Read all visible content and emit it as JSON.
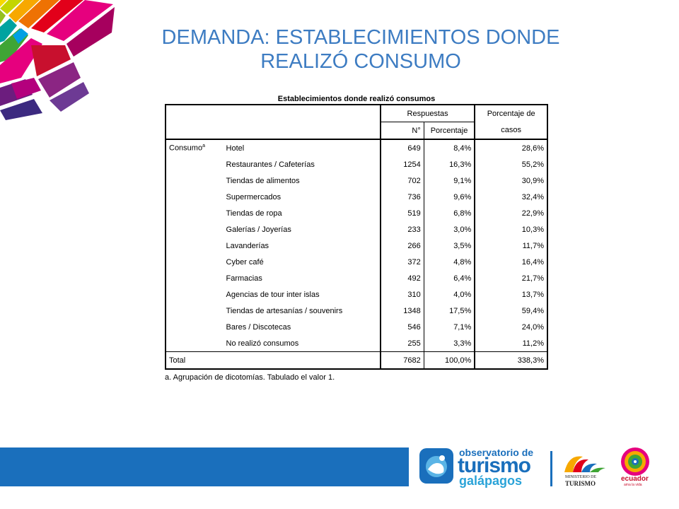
{
  "title": {
    "line1": "DEMANDA: ESTABLECIMIENTOS DONDE",
    "line2": "REALIZÓ CONSUMO"
  },
  "table": {
    "caption": "Establecimientos donde realizó consumos",
    "headers": {
      "respuestas": "Respuestas",
      "n": "N°",
      "porcentaje": "Porcentaje",
      "porcentaje_casos_line1": "Porcentaje de",
      "porcentaje_casos_line2": "casos"
    },
    "group_label": "Consumo",
    "group_sup": "a",
    "rows": [
      {
        "label": "Hotel",
        "n": "649",
        "pct": "8,4%",
        "cases": "28,6%"
      },
      {
        "label": "Restaurantes / Cafeterías",
        "n": "1254",
        "pct": "16,3%",
        "cases": "55,2%"
      },
      {
        "label": "Tiendas de alimentos",
        "n": "702",
        "pct": "9,1%",
        "cases": "30,9%"
      },
      {
        "label": "Supermercados",
        "n": "736",
        "pct": "9,6%",
        "cases": "32,4%"
      },
      {
        "label": "Tiendas de ropa",
        "n": "519",
        "pct": "6,8%",
        "cases": "22,9%"
      },
      {
        "label": "Galerías / Joyerías",
        "n": "233",
        "pct": "3,0%",
        "cases": "10,3%"
      },
      {
        "label": "Lavanderías",
        "n": "266",
        "pct": "3,5%",
        "cases": "11,7%"
      },
      {
        "label": "Cyber café",
        "n": "372",
        "pct": "4,8%",
        "cases": "16,4%"
      },
      {
        "label": "Farmacias",
        "n": "492",
        "pct": "6,4%",
        "cases": "21,7%"
      },
      {
        "label": "Agencias de tour inter islas",
        "n": "310",
        "pct": "4,0%",
        "cases": "13,7%"
      },
      {
        "label": "Tiendas de artesanías / souvenirs",
        "n": "1348",
        "pct": "17,5%",
        "cases": "59,4%"
      },
      {
        "label": "Bares / Discotecas",
        "n": "546",
        "pct": "7,1%",
        "cases": "24,0%"
      },
      {
        "label": "No realizó consumos",
        "n": "255",
        "pct": "3,3%",
        "cases": "11,2%"
      }
    ],
    "total": {
      "label": "Total",
      "n": "7682",
      "pct": "100,0%",
      "cases": "338,3%"
    },
    "footnote": "a. Agrupación de dicotomías. Tabulado el valor 1."
  },
  "footer": {
    "observatorio_line1": "observatorio de",
    "observatorio_line2": "turismo",
    "observatorio_line3": "galápagos",
    "ministerio_line1": "MINISTERIO DE",
    "ministerio_line2": "TURISMO",
    "ecuador": "ecuador",
    "ecuador_sub": "ama la vida"
  },
  "colors": {
    "title": "#3d7cc2",
    "footer_bar": "#1a6fbc"
  }
}
